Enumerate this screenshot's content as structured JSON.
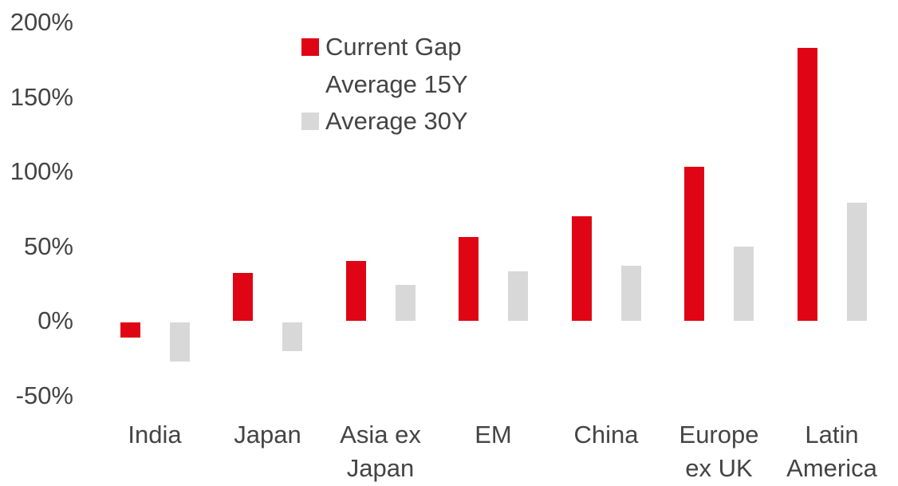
{
  "chart_data": {
    "type": "bar",
    "title": "",
    "xlabel": "",
    "ylabel": "",
    "unit": "%",
    "categories": [
      "India",
      "Japan",
      "Asia ex Japan",
      "EM",
      "China",
      "Europe ex UK",
      "Latin America"
    ],
    "category_label_lines": [
      [
        "India"
      ],
      [
        "Japan"
      ],
      [
        "Asia ex",
        "Japan"
      ],
      [
        "EM"
      ],
      [
        "China"
      ],
      [
        "Europe",
        "ex UK"
      ],
      [
        "Latin",
        "America"
      ]
    ],
    "series": [
      {
        "name": "Current Gap",
        "color": "#e00514",
        "values": [
          -10,
          32,
          40,
          56,
          70,
          103,
          183
        ]
      },
      {
        "name": "Average 30Y",
        "color": "#d8d8d8",
        "values": [
          -26,
          -19,
          24,
          33,
          37,
          50,
          79
        ]
      }
    ],
    "legend": [
      {
        "label": "Current Gap",
        "swatch_color": "#e00514",
        "swatch_visible": true
      },
      {
        "label": "Average 15Y",
        "swatch_color": "#ffffff",
        "swatch_visible": false
      },
      {
        "label": "Average 30Y",
        "swatch_color": "#d8d8d8",
        "swatch_visible": true
      }
    ],
    "legend_position": "top, left of center",
    "ylim": [
      -50,
      200
    ],
    "ytick_values": [
      200,
      150,
      100,
      50,
      0,
      -50
    ],
    "ytick_labels": [
      "200%",
      "150%",
      "100%",
      "50%",
      "0%",
      "-50%"
    ],
    "grid": false,
    "axis_lines": false
  },
  "colors": {
    "background": "#ffffff",
    "text": "#444444",
    "bar_red": "#e00514",
    "bar_gray": "#d8d8d8"
  }
}
